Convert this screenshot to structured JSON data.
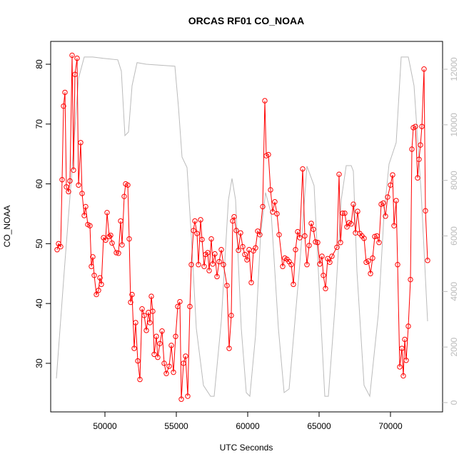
{
  "chart_data": {
    "type": "line",
    "title": "ORCAS RF01 CO_NOAA",
    "x_label": "UTC Seconds",
    "y_label": "CO_NOAA",
    "xlim": [
      46200,
      73650
    ],
    "ylim": [
      21.88,
      83.82
    ],
    "y2lim": [
      -334,
      13002
    ],
    "xticks": [
      50000,
      55000,
      60000,
      65000,
      70000
    ],
    "yticks": [
      30,
      40,
      50,
      60,
      70,
      80
    ],
    "y2ticks": [
      0,
      2000,
      4000,
      6000,
      8000,
      10000,
      12000
    ],
    "y2_color": "#bbbbbb",
    "markers": true,
    "series": [
      {
        "color": "#bbbbbb",
        "axis": "y2",
        "x": [
          46600,
          47150,
          47650,
          48150,
          48550,
          49150,
          49900,
          50900,
          51150,
          51400,
          51650,
          51900,
          52250,
          52900,
          54900,
          55150,
          55400,
          55750,
          56050,
          56400,
          56900,
          57400,
          57650,
          58150,
          58650,
          58900,
          59150,
          59550,
          59900,
          60150,
          60550,
          60900,
          61250,
          61650,
          62150,
          62550,
          62900,
          63650,
          64150,
          64650,
          65050,
          65400,
          65650,
          66150,
          66550,
          66900,
          67250,
          67400,
          67650,
          68150,
          68550,
          69150,
          69550,
          69900,
          70400,
          70750,
          71250,
          71650,
          72150,
          72600
        ],
        "values": [
          870,
          4730,
          8070,
          11670,
          12440,
          12440,
          12390,
          12340,
          11930,
          9610,
          9740,
          11410,
          12240,
          12180,
          12110,
          10640,
          8840,
          8460,
          6010,
          2670,
          620,
          230,
          230,
          2930,
          7300,
          8070,
          7300,
          2670,
          360,
          230,
          2420,
          6010,
          7560,
          6790,
          2670,
          360,
          490,
          4990,
          8510,
          7810,
          3700,
          230,
          230,
          3700,
          7300,
          8530,
          8530,
          8330,
          4730,
          620,
          230,
          3190,
          6790,
          8590,
          9360,
          12440,
          12440,
          11410,
          7560,
          2930
        ]
      },
      {
        "color": "#ff0000",
        "x": [
          46650,
          46750,
          46900,
          47000,
          47100,
          47200,
          47300,
          47450,
          47550,
          47700,
          47800,
          47900,
          48050,
          48150,
          48300,
          48400,
          48550,
          48650,
          48800,
          48950,
          49050,
          49150,
          49250,
          49400,
          49550,
          49650,
          49750,
          49900,
          50050,
          50150,
          50300,
          50400,
          50500,
          50800,
          50950,
          51100,
          51200,
          51350,
          51450,
          51600,
          51700,
          51800,
          51900,
          52050,
          52150,
          52300,
          52450,
          52600,
          52750,
          52900,
          53050,
          53150,
          53250,
          53350,
          53450,
          53600,
          53700,
          53850,
          54000,
          54150,
          54300,
          54500,
          54650,
          54800,
          54950,
          55100,
          55250,
          55350,
          55500,
          55650,
          55800,
          55950,
          56050,
          56200,
          56300,
          56450,
          56550,
          56700,
          56800,
          56950,
          57050,
          57200,
          57300,
          57450,
          57550,
          57700,
          57850,
          58000,
          58150,
          58300,
          58550,
          58700,
          58850,
          58950,
          59050,
          59200,
          59350,
          59500,
          59650,
          59800,
          59950,
          60100,
          60250,
          60400,
          60550,
          60700,
          60850,
          61050,
          61200,
          61300,
          61450,
          61600,
          61750,
          61900,
          62050,
          62200,
          62450,
          62600,
          62750,
          62900,
          63050,
          63200,
          63350,
          63500,
          63650,
          63850,
          64000,
          64150,
          64300,
          64450,
          64600,
          64750,
          64900,
          65050,
          65200,
          65300,
          65450,
          65600,
          65750,
          65900,
          66250,
          66400,
          66500,
          66650,
          66800,
          66950,
          67100,
          67250,
          67400,
          67550,
          67700,
          67850,
          68000,
          68150,
          68300,
          68450,
          68600,
          68750,
          68900,
          69050,
          69200,
          69350,
          69500,
          69650,
          69800,
          70000,
          70150,
          70250,
          70400,
          70500,
          70650,
          70800,
          70900,
          71000,
          71100,
          71250,
          71400,
          71500,
          71600,
          71750,
          71900,
          72000,
          72100,
          72200,
          72350,
          72450,
          72600
        ],
        "values": [
          49,
          50,
          49.5,
          60.7,
          73,
          75.3,
          59.5,
          58.7,
          60.5,
          81.5,
          62.3,
          78.3,
          81,
          59.8,
          66.9,
          58.4,
          54.7,
          56.2,
          53.2,
          53,
          46.2,
          47.8,
          44.7,
          41.5,
          42.2,
          44.3,
          43.2,
          51,
          50.6,
          55.2,
          51.2,
          51.4,
          50.1,
          48.5,
          48.4,
          53.8,
          49.8,
          57.9,
          60,
          59.8,
          50.8,
          40.2,
          41.5,
          32.5,
          36.8,
          30.4,
          27.3,
          39.1,
          38,
          35.5,
          38.5,
          36.8,
          41.2,
          38.7,
          31.5,
          34.5,
          31,
          33.3,
          35.4,
          30,
          28.3,
          29.5,
          33,
          28.5,
          34.5,
          39.5,
          40.3,
          24,
          30,
          31.2,
          24.5,
          39.5,
          46.5,
          52.2,
          53.8,
          51.7,
          46.5,
          54,
          50.7,
          46.2,
          48.2,
          48.5,
          45.5,
          50.8,
          46.6,
          48.3,
          44.5,
          47,
          49,
          46.5,
          43,
          32.5,
          38,
          53.8,
          54.5,
          52.2,
          48.9,
          51.8,
          49.5,
          48.2,
          47.3,
          49,
          43.5,
          48.8,
          49.3,
          52.1,
          51.5,
          56.2,
          73.9,
          64.7,
          64.9,
          59,
          55.3,
          57,
          55,
          51.5,
          46.2,
          47.6,
          47.4,
          47,
          46.5,
          43.2,
          49,
          52,
          51,
          62.5,
          51.3,
          46.5,
          49.7,
          53.4,
          52.4,
          50.3,
          50.2,
          46.6,
          47.9,
          44.7,
          42.5,
          47.5,
          46.9,
          47.9,
          49.4,
          61.6,
          50.2,
          55.1,
          55.1,
          52.8,
          53.5,
          53.3,
          56.6,
          51.8,
          55.4,
          51.7,
          51.3,
          50.9,
          46.9,
          47.1,
          45,
          47.6,
          51.2,
          51.3,
          50.2,
          56.6,
          56.8,
          54.6,
          57.8,
          59.8,
          61.5,
          53,
          57.2,
          46.5,
          29.4,
          32.5,
          27.9,
          34,
          30.5,
          36.2,
          44,
          65.8,
          69.4,
          69.6,
          61,
          64.1,
          66.5,
          69.6,
          79.2,
          55.5,
          47.2
        ]
      }
    ]
  }
}
